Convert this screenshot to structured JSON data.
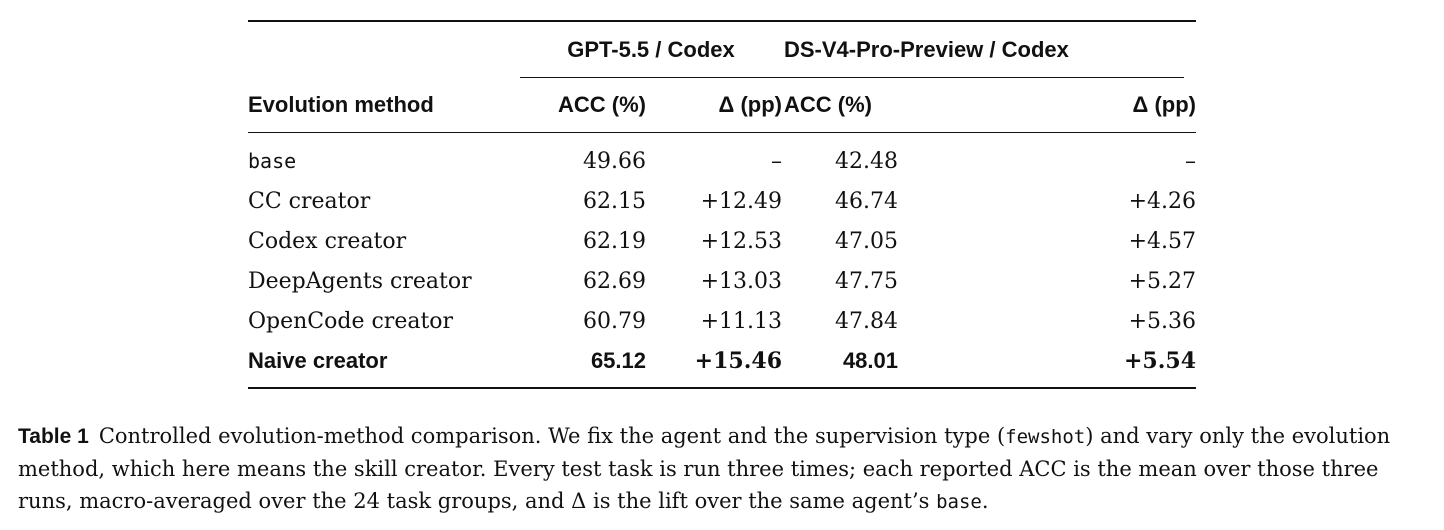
{
  "table": {
    "groups": [
      {
        "label": "GPT-5.5 / Codex"
      },
      {
        "label": "DS-V4-Pro-Preview / Codex"
      }
    ],
    "headers": {
      "method": "Evolution method",
      "acc1": "ACC (%)",
      "delta1": "Δ (pp)",
      "acc2": "ACC (%)",
      "delta2": "Δ (pp)"
    },
    "rows": [
      {
        "method": "base",
        "acc1": "49.66",
        "delta1": "–",
        "acc2": "42.48",
        "delta2": "–"
      },
      {
        "method": "CC creator",
        "acc1": "62.15",
        "delta1": "+12.49",
        "acc2": "46.74",
        "delta2": "+4.26"
      },
      {
        "method": "Codex creator",
        "acc1": "62.19",
        "delta1": "+12.53",
        "acc2": "47.05",
        "delta2": "+4.57"
      },
      {
        "method": "DeepAgents creator",
        "acc1": "62.69",
        "delta1": "+13.03",
        "acc2": "47.75",
        "delta2": "+5.27"
      },
      {
        "method": "OpenCode creator",
        "acc1": "60.79",
        "delta1": "+11.13",
        "acc2": "47.84",
        "delta2": "+5.36"
      },
      {
        "method": "Naive creator",
        "acc1": "65.12",
        "delta1": "+15.46",
        "acc2": "48.01",
        "delta2": "+5.54"
      }
    ]
  },
  "caption": {
    "label": "Table 1",
    "text_1": "Controlled evolution-method comparison. We fix the agent and the supervision type (",
    "code_1": "fewshot",
    "text_2": ") and vary only the evolution method, which here means the skill creator. Every test task is run three times; each reported ACC is the mean over those three runs, macro-averaged over the 24 task groups, and Δ is the lift over the same agent’s ",
    "code_2": "base",
    "text_3": "."
  }
}
